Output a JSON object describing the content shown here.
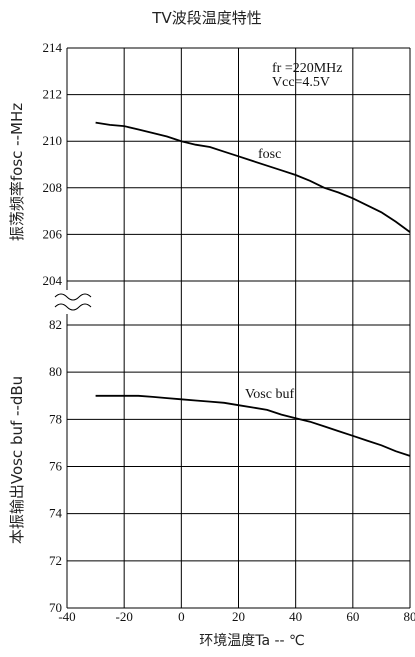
{
  "chart_data": {
    "type": "line",
    "title": "TV波段温度特性",
    "xlabel": "环境温度Ta -- ℃",
    "xlim": [
      -40,
      80
    ],
    "x_ticks": [
      -40,
      -20,
      0,
      20,
      40,
      60,
      80
    ],
    "x_tick_labels": [
      "-40",
      "-20",
      "0",
      "20",
      "40",
      "60",
      "80"
    ],
    "grid": true,
    "panels": [
      {
        "id": "top",
        "ylabel": "振荡频率fosc --MHz",
        "ylim": [
          204,
          214
        ],
        "y_ticks": [
          204,
          206,
          208,
          210,
          212,
          214
        ],
        "y_tick_labels": [
          "204",
          "206",
          "208",
          "210",
          "212",
          "214"
        ],
        "series": [
          {
            "name": "fosc",
            "x": [
              -30,
              -25,
              -20,
              -15,
              -10,
              -5,
              0,
              5,
              10,
              15,
              20,
              25,
              30,
              35,
              40,
              45,
              50,
              55,
              60,
              65,
              70,
              75,
              80
            ],
            "y": [
              210.8,
              210.7,
              210.65,
              210.5,
              210.35,
              210.2,
              210.0,
              209.85,
              209.75,
              209.55,
              209.35,
              209.15,
              208.95,
              208.75,
              208.55,
              208.3,
              208.0,
              207.8,
              207.55,
              207.25,
              206.95,
              206.55,
              206.1
            ]
          }
        ],
        "annotations": [
          "fr =220MHz",
          "Vcc=4.5V"
        ]
      },
      {
        "id": "bottom",
        "ylabel": "本振输出Vosc buf --dBu",
        "ylim": [
          70,
          82
        ],
        "y_ticks": [
          70,
          72,
          74,
          76,
          78,
          80,
          82
        ],
        "y_tick_labels": [
          "70",
          "72",
          "74",
          "76",
          "78",
          "80",
          "82"
        ],
        "series": [
          {
            "name": "Vosc buf",
            "x": [
              -30,
              -25,
              -20,
              -15,
              -10,
              -5,
              0,
              5,
              10,
              15,
              20,
              25,
              30,
              35,
              40,
              45,
              50,
              55,
              60,
              65,
              70,
              75,
              80
            ],
            "y": [
              79.0,
              79.0,
              79.0,
              79.0,
              78.95,
              78.9,
              78.85,
              78.8,
              78.75,
              78.7,
              78.6,
              78.5,
              78.4,
              78.2,
              78.05,
              77.9,
              77.7,
              77.5,
              77.3,
              77.1,
              76.9,
              76.65,
              76.45
            ]
          }
        ]
      }
    ]
  }
}
